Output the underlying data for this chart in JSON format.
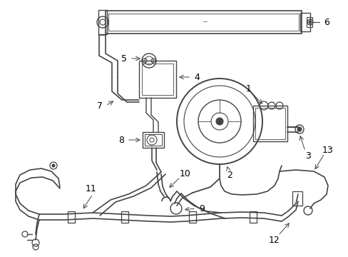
{
  "bg_color": "#ffffff",
  "line_color": "#444444",
  "lw": 1.0,
  "figsize": [
    4.89,
    3.6
  ],
  "dpi": 100
}
